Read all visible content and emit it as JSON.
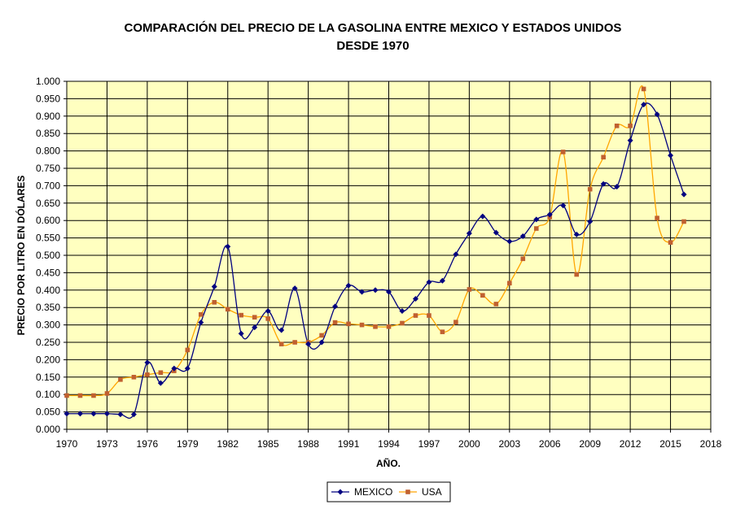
{
  "chart_data": {
    "type": "line",
    "title_line1": "COMPARACIÓN DEL PRECIO DE LA GASOLINA ENTRE MEXICO Y ESTADOS UNIDOS",
    "title_line2": "DESDE 1970",
    "xlabel": "AÑO.",
    "ylabel": "PRECIO POR LITRO EN DÓLARES",
    "xlim": [
      1970,
      2018
    ],
    "ylim": [
      0,
      1.0
    ],
    "x_ticks": [
      "1970",
      "1973",
      "1976",
      "1979",
      "1982",
      "1985",
      "1988",
      "1991",
      "1994",
      "1997",
      "2000",
      "2003",
      "2006",
      "2009",
      "2012",
      "2015",
      "2018"
    ],
    "y_ticks": [
      "0.000",
      "0.050",
      "0.100",
      "0.150",
      "0.200",
      "0.250",
      "0.300",
      "0.350",
      "0.400",
      "0.450",
      "0.500",
      "0.550",
      "0.600",
      "0.650",
      "0.700",
      "0.750",
      "0.800",
      "0.850",
      "0.900",
      "0.950",
      "1.000"
    ],
    "grid": true,
    "background_color": "#FFFFC0",
    "legend_position": "bottom-center",
    "x": [
      1970,
      1971,
      1972,
      1973,
      1974,
      1975,
      1976,
      1977,
      1978,
      1979,
      1980,
      1981,
      1982,
      1983,
      1984,
      1985,
      1986,
      1987,
      1988,
      1989,
      1990,
      1991,
      1992,
      1993,
      1994,
      1995,
      1996,
      1997,
      1998,
      1999,
      2000,
      2001,
      2002,
      2003,
      2004,
      2005,
      2006,
      2007,
      2008,
      2009,
      2010,
      2011,
      2012,
      2013,
      2014,
      2015,
      2016
    ],
    "series": [
      {
        "name": "MEXICO",
        "color": "#000080",
        "marker": "diamond",
        "values": [
          0.045,
          0.045,
          0.045,
          0.045,
          0.043,
          0.043,
          0.192,
          0.133,
          0.175,
          0.175,
          0.307,
          0.41,
          0.525,
          0.275,
          0.293,
          0.34,
          0.285,
          0.405,
          0.245,
          0.25,
          0.353,
          0.413,
          0.395,
          0.4,
          0.395,
          0.34,
          0.375,
          0.423,
          0.427,
          0.503,
          0.563,
          0.612,
          0.565,
          0.54,
          0.555,
          0.603,
          0.617,
          0.643,
          0.56,
          0.597,
          0.705,
          0.697,
          0.83,
          0.933,
          0.905,
          0.787,
          0.675
        ]
      },
      {
        "name": "USA",
        "color": "#FFA500",
        "marker": "square",
        "marker_color": "#C06030",
        "values": [
          0.097,
          0.097,
          0.097,
          0.103,
          0.143,
          0.15,
          0.157,
          0.163,
          0.168,
          0.228,
          0.33,
          0.365,
          0.345,
          0.328,
          0.322,
          0.318,
          0.245,
          0.25,
          0.25,
          0.27,
          0.307,
          0.303,
          0.3,
          0.295,
          0.295,
          0.305,
          0.327,
          0.327,
          0.28,
          0.308,
          0.402,
          0.385,
          0.36,
          0.42,
          0.49,
          0.577,
          0.61,
          0.797,
          0.445,
          0.69,
          0.782,
          0.872,
          0.872,
          0.978,
          0.607,
          0.537,
          0.597
        ]
      }
    ]
  }
}
